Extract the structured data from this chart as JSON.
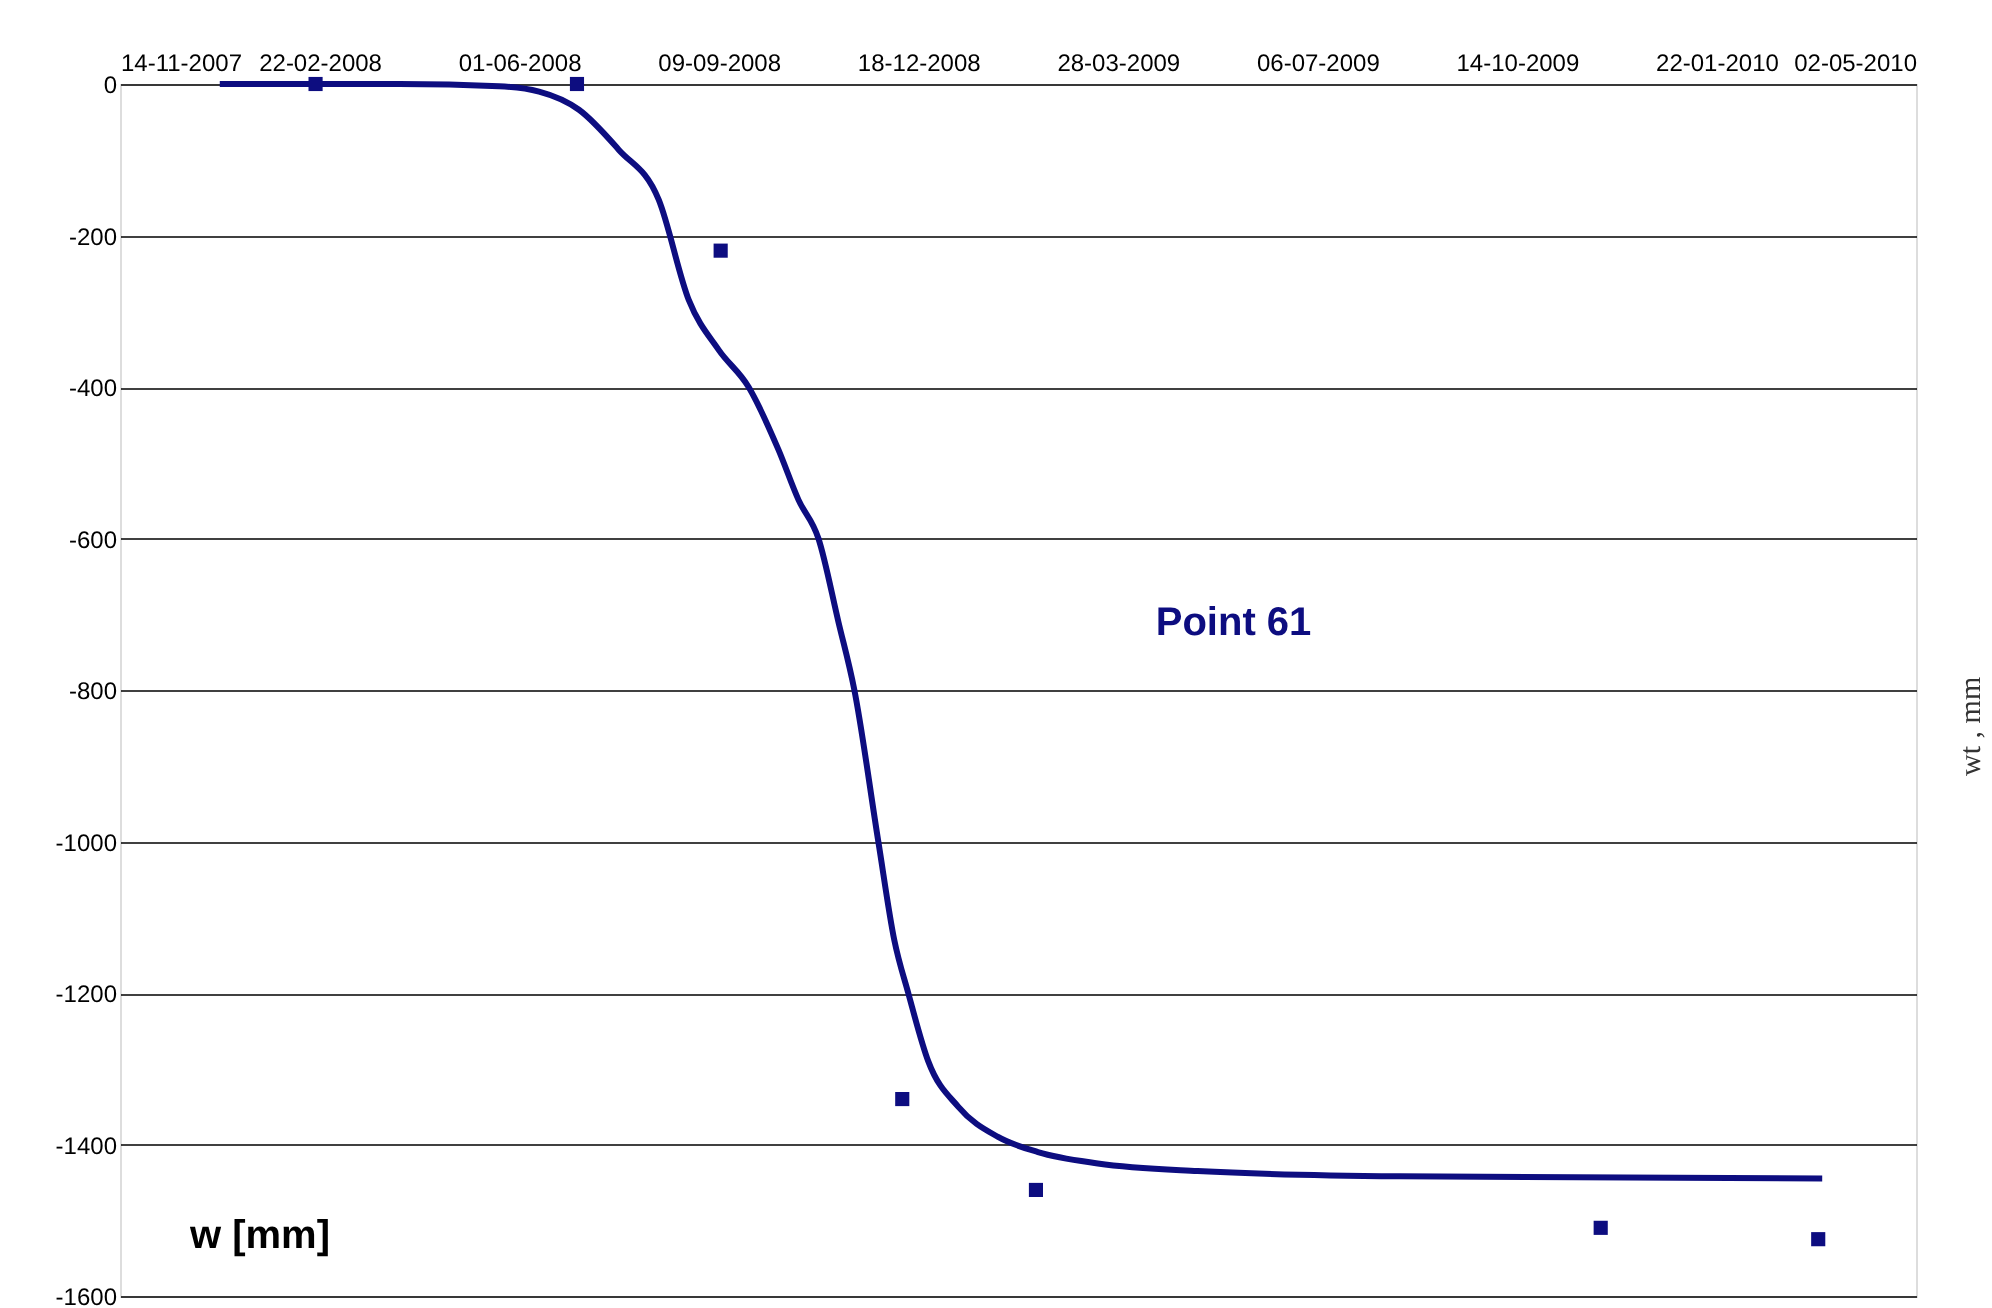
{
  "chart_data": {
    "type": "scatter",
    "title": "Point 61",
    "y2label": "wt ,  mm",
    "annotations": [
      "w [mm]"
    ],
    "xlim": [
      "2007-11-14",
      "2010-05-02"
    ],
    "xticks": [
      {
        "value": "2007-11-14",
        "label": "14-11-2007"
      },
      {
        "value": "2008-02-22",
        "label": "22-02-2008"
      },
      {
        "value": "2008-06-01",
        "label": "01-06-2008"
      },
      {
        "value": "2008-09-09",
        "label": "09-09-2008"
      },
      {
        "value": "2008-12-18",
        "label": "18-12-2008"
      },
      {
        "value": "2009-03-28",
        "label": "28-03-2009"
      },
      {
        "value": "2009-07-06",
        "label": "06-07-2009"
      },
      {
        "value": "2009-10-14",
        "label": "14-10-2009"
      },
      {
        "value": "2010-01-22",
        "label": "22-01-2010"
      },
      {
        "value": "2010-05-02",
        "label": "02-05-2010"
      }
    ],
    "ylim": [
      -1600,
      0
    ],
    "yticks": [
      -1600,
      -1400,
      -1200,
      -1000,
      -800,
      -600,
      -400,
      -200,
      0
    ],
    "grid": "y",
    "series": [
      {
        "marker": "square",
        "color": "#0d0d80",
        "x": [
          "2008-02-20",
          "2008-06-30",
          "2008-09-10",
          "2008-12-10",
          "2009-02-15",
          "2009-11-25",
          "2010-03-14"
        ],
        "values": [
          0,
          0,
          -220,
          -1340,
          -1460,
          -1510,
          -1525
        ]
      },
      {
        "type": "line",
        "marker": "none",
        "color": "#0d0d80",
        "x": [
          "2008-01-03",
          "2008-04-02",
          "2008-05-22",
          "2008-06-11",
          "2008-07-01",
          "2008-07-21",
          "2008-08-10",
          "2008-08-25",
          "2008-09-09",
          "2008-09-24",
          "2008-10-09",
          "2008-10-19",
          "2008-10-29",
          "2008-11-08",
          "2008-11-16",
          "2008-11-28",
          "2008-12-06",
          "2008-12-13",
          "2008-12-23",
          "2009-01-07",
          "2009-01-27",
          "2009-02-16",
          "2009-03-18",
          "2009-05-07",
          "2009-08-16",
          "2010-03-16"
        ],
        "values": [
          0,
          0,
          -3,
          -10,
          -34,
          -87,
          -153,
          -285,
          -351,
          -400,
          -483,
          -549,
          -600,
          -710,
          -800,
          -1000,
          -1130,
          -1200,
          -1290,
          -1350,
          -1390,
          -1410,
          -1425,
          -1435,
          -1442,
          -1445
        ]
      }
    ]
  }
}
